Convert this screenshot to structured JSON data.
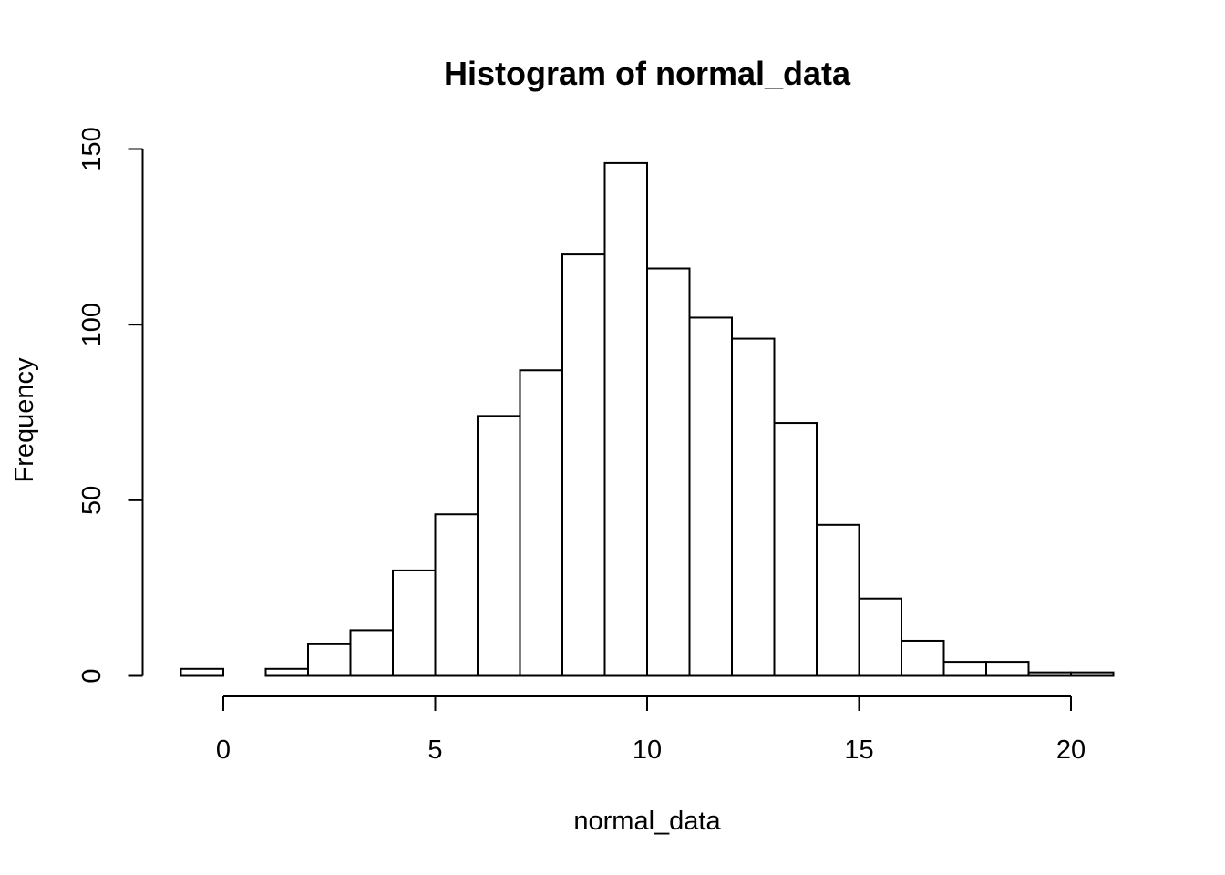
{
  "chart_data": {
    "type": "bar",
    "title": "Histogram of normal_data",
    "xlabel": "normal_data",
    "ylabel": "Frequency",
    "xlim": [
      -1,
      21
    ],
    "ylim": [
      0,
      150
    ],
    "x_ticks": [
      0,
      5,
      10,
      15,
      20
    ],
    "y_ticks": [
      0,
      50,
      100,
      150
    ],
    "bins": [
      {
        "start": -1,
        "end": 0,
        "count": 2
      },
      {
        "start": 0,
        "end": 1,
        "count": 0
      },
      {
        "start": 1,
        "end": 2,
        "count": 2
      },
      {
        "start": 2,
        "end": 3,
        "count": 9
      },
      {
        "start": 3,
        "end": 4,
        "count": 13
      },
      {
        "start": 4,
        "end": 5,
        "count": 30
      },
      {
        "start": 5,
        "end": 6,
        "count": 46
      },
      {
        "start": 6,
        "end": 7,
        "count": 74
      },
      {
        "start": 7,
        "end": 8,
        "count": 87
      },
      {
        "start": 8,
        "end": 9,
        "count": 120
      },
      {
        "start": 9,
        "end": 10,
        "count": 146
      },
      {
        "start": 10,
        "end": 11,
        "count": 116
      },
      {
        "start": 11,
        "end": 12,
        "count": 102
      },
      {
        "start": 12,
        "end": 13,
        "count": 96
      },
      {
        "start": 13,
        "end": 14,
        "count": 72
      },
      {
        "start": 14,
        "end": 15,
        "count": 43
      },
      {
        "start": 15,
        "end": 16,
        "count": 22
      },
      {
        "start": 16,
        "end": 17,
        "count": 10
      },
      {
        "start": 17,
        "end": 18,
        "count": 4
      },
      {
        "start": 18,
        "end": 19,
        "count": 4
      },
      {
        "start": 19,
        "end": 20,
        "count": 1
      },
      {
        "start": 20,
        "end": 21,
        "count": 1
      }
    ],
    "colors": {
      "bar_fill": "#ffffff",
      "bar_stroke": "#000000",
      "axis": "#000000"
    }
  }
}
